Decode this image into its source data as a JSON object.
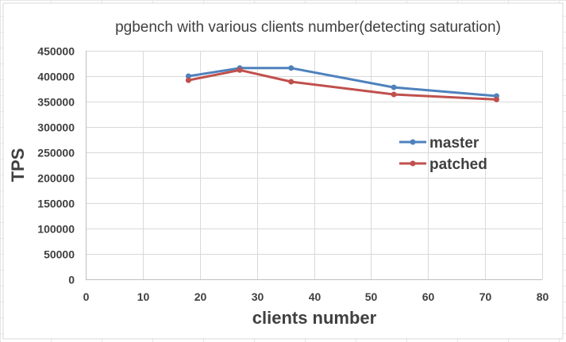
{
  "chart_data": {
    "type": "scatter",
    "title": "pgbench with various clients number(detecting saturation)",
    "xlabel": "clients number",
    "ylabel": "TPS",
    "xlim": [
      0,
      80
    ],
    "ylim": [
      0,
      450000
    ],
    "xticks": [
      "0",
      "10",
      "20",
      "30",
      "40",
      "50",
      "60",
      "70",
      "80"
    ],
    "yticks": [
      "0",
      "50000",
      "100000",
      "150000",
      "200000",
      "250000",
      "300000",
      "350000",
      "400000",
      "450000"
    ],
    "grid": true,
    "legend_position": "right",
    "series": [
      {
        "name": "master",
        "color": "#4f81bd",
        "x": [
          18,
          27,
          36,
          54,
          72
        ],
        "y": [
          400000,
          416000,
          416000,
          378000,
          361000
        ]
      },
      {
        "name": "patched",
        "color": "#c0504d",
        "x": [
          18,
          27,
          36,
          54,
          72
        ],
        "y": [
          392000,
          412000,
          389000,
          364000,
          354000
        ]
      }
    ]
  }
}
